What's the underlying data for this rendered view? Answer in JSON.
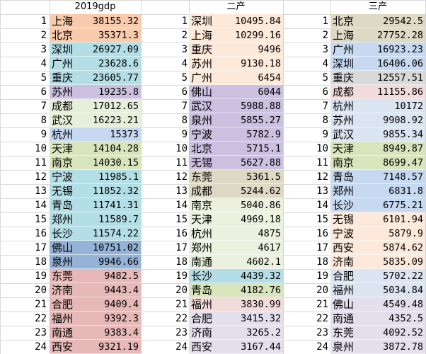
{
  "sheet": {
    "headers": [
      "2019gdp",
      "二产",
      "三产"
    ],
    "ranks": [
      1,
      2,
      3,
      4,
      5,
      6,
      7,
      8,
      9,
      10,
      11,
      12,
      13,
      14,
      15,
      16,
      17,
      18,
      19,
      20,
      21,
      22,
      23,
      24
    ],
    "columns": [
      {
        "header": "2019gdp",
        "rows": [
          {
            "city": "上海",
            "value": "38155.32",
            "color": "#f8cbad"
          },
          {
            "city": "北京",
            "value": "35371.3",
            "color": "#f8cbad"
          },
          {
            "city": "深圳",
            "value": "26927.09",
            "color": "#b4dee6"
          },
          {
            "city": "广州",
            "value": "23628.6",
            "color": "#b4dee6"
          },
          {
            "city": "重庆",
            "value": "23605.77",
            "color": "#b4dee6"
          },
          {
            "city": "苏州",
            "value": "19235.8",
            "color": "#ccc0e0"
          },
          {
            "city": "成都",
            "value": "17012.65",
            "color": "#e6efd9"
          },
          {
            "city": "武汉",
            "value": "16223.21",
            "color": "#e6efd9"
          },
          {
            "city": "杭州",
            "value": "15373",
            "color": "#c6d9f1"
          },
          {
            "city": "天津",
            "value": "14104.28",
            "color": "#d8e4bc"
          },
          {
            "city": "南京",
            "value": "14030.15",
            "color": "#d8e4bc"
          },
          {
            "city": "宁波",
            "value": "11985.1",
            "color": "#b4dee6"
          },
          {
            "city": "无锡",
            "value": "11852.32",
            "color": "#b4dee6"
          },
          {
            "city": "青岛",
            "value": "11741.31",
            "color": "#b4dee6"
          },
          {
            "city": "郑州",
            "value": "11589.7",
            "color": "#b4dee6"
          },
          {
            "city": "长沙",
            "value": "11574.22",
            "color": "#b4dee6"
          },
          {
            "city": "佛山",
            "value": "10751.02",
            "color": "#95b3d7"
          },
          {
            "city": "泉州",
            "value": "9946.66",
            "color": "#95b3d7"
          },
          {
            "city": "东莞",
            "value": "9482.5",
            "color": "#e6b9b8"
          },
          {
            "city": "济南",
            "value": "9443.4",
            "color": "#e6b9b8"
          },
          {
            "city": "合肥",
            "value": "9409.4",
            "color": "#e6b9b8"
          },
          {
            "city": "福州",
            "value": "9392.3",
            "color": "#e6b9b8"
          },
          {
            "city": "南通",
            "value": "9383.4",
            "color": "#e6b9b8"
          },
          {
            "city": "西安",
            "value": "9321.19",
            "color": "#e6b9b8"
          }
        ]
      },
      {
        "header": "二产",
        "rows": [
          {
            "city": "深圳",
            "value": "10495.84",
            "color": "#fde9d9"
          },
          {
            "city": "上海",
            "value": "10299.16",
            "color": "#fde9d9"
          },
          {
            "city": "重庆",
            "value": "9496",
            "color": "#fde9d9"
          },
          {
            "city": "苏州",
            "value": "9130.18",
            "color": "#fde9d9"
          },
          {
            "city": "广州",
            "value": "6454",
            "color": "#fde9d9"
          },
          {
            "city": "佛山",
            "value": "6044",
            "color": "#ccc0e0"
          },
          {
            "city": "武汉",
            "value": "5988.88",
            "color": "#ccc0e0"
          },
          {
            "city": "泉州",
            "value": "5855.27",
            "color": "#ccc0e0"
          },
          {
            "city": "宁波",
            "value": "5782.9",
            "color": "#ccc0e0"
          },
          {
            "city": "北京",
            "value": "5715.1",
            "color": "#ccc0e0"
          },
          {
            "city": "无锡",
            "value": "5627.88",
            "color": "#ccc0e0"
          },
          {
            "city": "东莞",
            "value": "5361.5",
            "color": "#ddd9c4"
          },
          {
            "city": "成都",
            "value": "5244.62",
            "color": "#ddd9c4"
          },
          {
            "city": "南京",
            "value": "5040.86",
            "color": "#ebf1de"
          },
          {
            "city": "天津",
            "value": "4969.18",
            "color": "#ebf1de"
          },
          {
            "city": "杭州",
            "value": "4875",
            "color": "#ebf1de"
          },
          {
            "city": "郑州",
            "value": "4617",
            "color": "#ebf1de"
          },
          {
            "city": "南通",
            "value": "4602.1",
            "color": "#ebf1de"
          },
          {
            "city": "长沙",
            "value": "4439.32",
            "color": "#b4dee6"
          },
          {
            "city": "青岛",
            "value": "4182.76",
            "color": "#d8e4bc"
          },
          {
            "city": "福州",
            "value": "3830.99",
            "color": "#f2dcdb"
          },
          {
            "city": "合肥",
            "value": "3415.32",
            "color": "#e4dfec"
          },
          {
            "city": "济南",
            "value": "3265.2",
            "color": "#e4dfec"
          },
          {
            "city": "西安",
            "value": "3167.44",
            "color": "#e4dfec"
          }
        ]
      },
      {
        "header": "三产",
        "rows": [
          {
            "city": "北京",
            "value": "29542.5",
            "color": "#ddd9c4"
          },
          {
            "city": "上海",
            "value": "27752.28",
            "color": "#ddd9c4"
          },
          {
            "city": "广州",
            "value": "16923.23",
            "color": "#c6d9f1"
          },
          {
            "city": "深圳",
            "value": "16406.06",
            "color": "#c6d9f1"
          },
          {
            "city": "重庆",
            "value": "12557.51",
            "color": "#d9d9d9"
          },
          {
            "city": "成都",
            "value": "11155.86",
            "color": "#f2dcdb"
          },
          {
            "city": "杭州",
            "value": "10172",
            "color": "#dbe5f1"
          },
          {
            "city": "苏州",
            "value": "9908.92",
            "color": "#dbe5f1"
          },
          {
            "city": "武汉",
            "value": "9855.34",
            "color": "#dbe5f1"
          },
          {
            "city": "天津",
            "value": "8949.87",
            "color": "#d8e4bc"
          },
          {
            "city": "南京",
            "value": "8699.47",
            "color": "#d8e4bc"
          },
          {
            "city": "青岛",
            "value": "7148.57",
            "color": "#c6d9f1"
          },
          {
            "city": "郑州",
            "value": "6831.8",
            "color": "#c6d9f1"
          },
          {
            "city": "长沙",
            "value": "6775.21",
            "color": "#c6d9f1"
          },
          {
            "city": "无锡",
            "value": "6101.94",
            "color": "#fde9d9"
          },
          {
            "city": "宁波",
            "value": "5879.9",
            "color": "#fde9d9"
          },
          {
            "city": "西安",
            "value": "5874.62",
            "color": "#fde9d9"
          },
          {
            "city": "济南",
            "value": "5835.09",
            "color": "#fde9d9"
          },
          {
            "city": "合肥",
            "value": "5702.22",
            "color": "#dbe5f1"
          },
          {
            "city": "福州",
            "value": "5034.84",
            "color": "#dbe5f1"
          },
          {
            "city": "佛山",
            "value": "4549.48",
            "color": "#e4dfec"
          },
          {
            "city": "南通",
            "value": "4352.5",
            "color": "#e4dfec"
          },
          {
            "city": "东莞",
            "value": "4092.52",
            "color": "#e4dfec"
          },
          {
            "city": "泉州",
            "value": "3872.78",
            "color": "#e4dfec"
          }
        ]
      }
    ]
  }
}
